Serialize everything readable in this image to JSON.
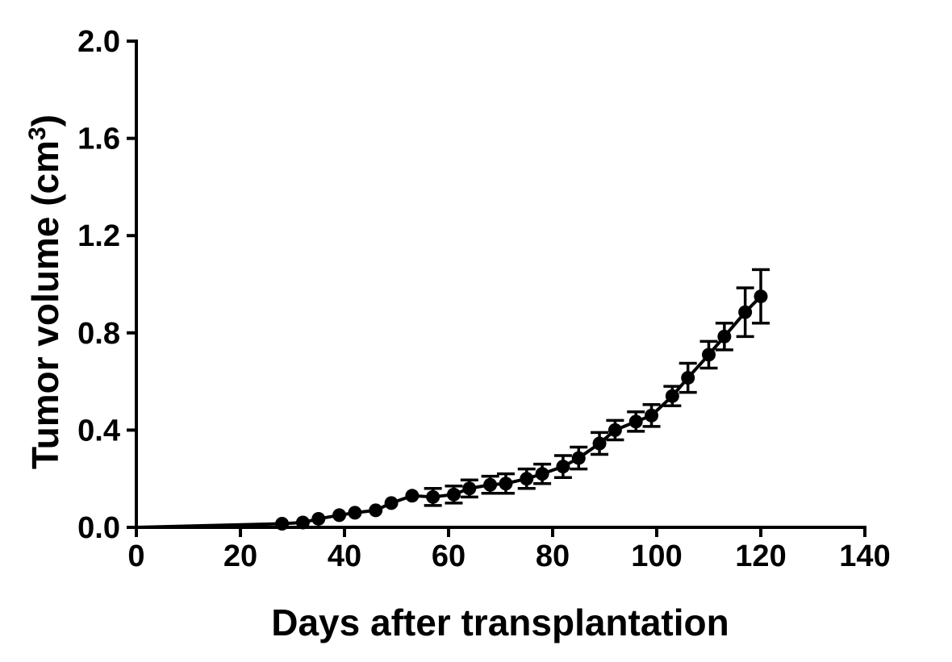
{
  "chart_data": {
    "type": "line",
    "xlabel": "Days after transplantation",
    "ylabel_main": "Tumor  volume  (cm",
    "ylabel_sup": "3",
    "ylabel_close": ")",
    "xlim": [
      0,
      140
    ],
    "ylim": [
      0,
      2.0
    ],
    "xticks": [
      0,
      20,
      40,
      60,
      80,
      100,
      120,
      140
    ],
    "xtick_labels": [
      "0",
      "20",
      "40",
      "60",
      "80",
      "100",
      "120",
      "140"
    ],
    "yticks": [
      0,
      0.4,
      0.8,
      1.2,
      1.6,
      2.0
    ],
    "ytick_labels": [
      "0.0",
      "0.4",
      "0.8",
      "1.2",
      "1.6",
      "2.0"
    ],
    "grid": false,
    "series": [
      {
        "x": [
          0,
          28,
          32,
          35,
          39,
          42,
          46,
          49,
          53,
          57,
          61,
          64,
          68,
          71,
          75,
          78,
          82,
          85,
          89,
          92,
          96,
          99,
          103,
          106,
          110,
          113,
          117,
          120
        ],
        "y": [
          0.0,
          0.015,
          0.02,
          0.035,
          0.05,
          0.06,
          0.07,
          0.1,
          0.13,
          0.125,
          0.135,
          0.16,
          0.175,
          0.18,
          0.2,
          0.22,
          0.25,
          0.285,
          0.345,
          0.4,
          0.435,
          0.46,
          0.54,
          0.615,
          0.71,
          0.785,
          0.885,
          0.95
        ],
        "err": [
          0.0,
          0.0,
          0.0,
          0.0,
          0.0,
          0.0,
          0.0,
          0.0,
          0.0,
          0.035,
          0.035,
          0.035,
          0.035,
          0.04,
          0.04,
          0.04,
          0.045,
          0.045,
          0.045,
          0.04,
          0.04,
          0.045,
          0.04,
          0.06,
          0.055,
          0.055,
          0.1,
          0.11
        ],
        "color": "#000000"
      }
    ]
  }
}
